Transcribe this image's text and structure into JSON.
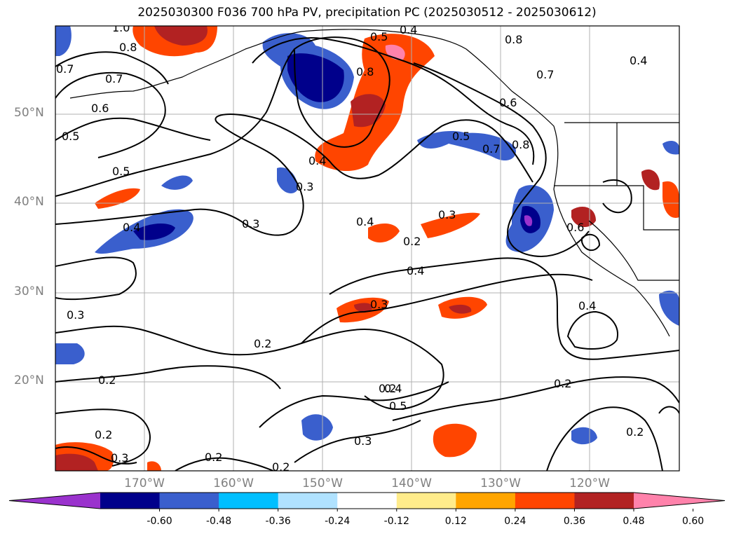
{
  "title": "2025030300 F036 700 hPa PV, precipitation PC (2025030512 - 2025030612)",
  "latitude_labels": [
    "50°N",
    "40°N",
    "30°N",
    "20°N"
  ],
  "longitude_labels": [
    "170°W",
    "160°W",
    "150°W",
    "140°W",
    "130°W",
    "120°W"
  ],
  "colorbar": {
    "ticks": [
      "-0.60",
      "-0.48",
      "-0.36",
      "-0.24",
      "-0.12",
      "0.12",
      "0.24",
      "0.36",
      "0.48",
      "0.60"
    ],
    "colors": [
      "#9a32cd",
      "#00008b",
      "#3a5fcd",
      "#00bfff",
      "#b0e2ff",
      "#ffffff",
      "#ffec8b",
      "#ffa500",
      "#ff4500",
      "#b22222",
      "#ff82ab"
    ],
    "extend": "both"
  },
  "pv_contour_labels": [
    "1.0",
    "0.8",
    "0.7",
    "0.7",
    "0.6",
    "0.5",
    "0.5",
    "0.4",
    "0.3",
    "0.3",
    "0.4",
    "0.2",
    "0.3",
    "0.4",
    "0.3",
    "0.2",
    "0.2",
    "0.2",
    "0.4",
    "0.3",
    "0.3",
    "0.2",
    "0.2",
    "0.3",
    "0.2",
    "0.4",
    "0.5",
    "0.8",
    "0.8",
    "0.7",
    "0.6",
    "0.5",
    "0.7",
    "0.8",
    "0.4",
    "0.6",
    "0.4",
    "0.2",
    "0.2",
    "0.5",
    "0.4"
  ]
}
